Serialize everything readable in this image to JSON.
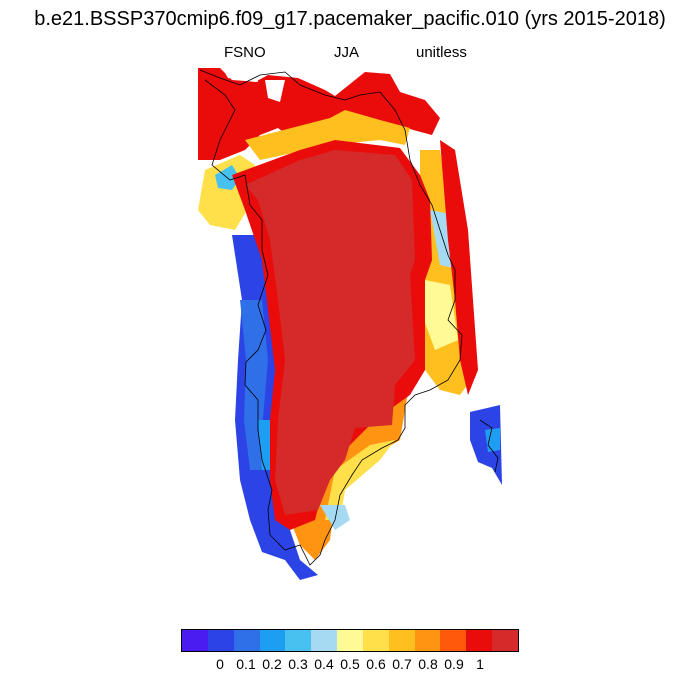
{
  "title": "b.e21.BSSP370cmip6.f09_g17.pacemaker_pacific.010 (yrs 2015-2018)",
  "subtitle": {
    "variable": "FSNO",
    "season": "JJA",
    "units": "unitless"
  },
  "colorbar": {
    "colors": [
      "#4b1cf2",
      "#2c44e6",
      "#2f6fe8",
      "#1e9ef2",
      "#48c1f0",
      "#a6daf2",
      "#fffa96",
      "#ffe04a",
      "#ffbf1f",
      "#ff9413",
      "#ff5a0c",
      "#ea0b0b",
      "#d42a2a"
    ],
    "labels": [
      "0",
      "0.1",
      "0.2",
      "0.3",
      "0.4",
      "0.5",
      "0.6",
      "0.7",
      "0.8",
      "0.9",
      "1"
    ]
  },
  "map": {
    "region": "Greenland",
    "interior_value": 1.0,
    "land_outline": "coastline"
  }
}
